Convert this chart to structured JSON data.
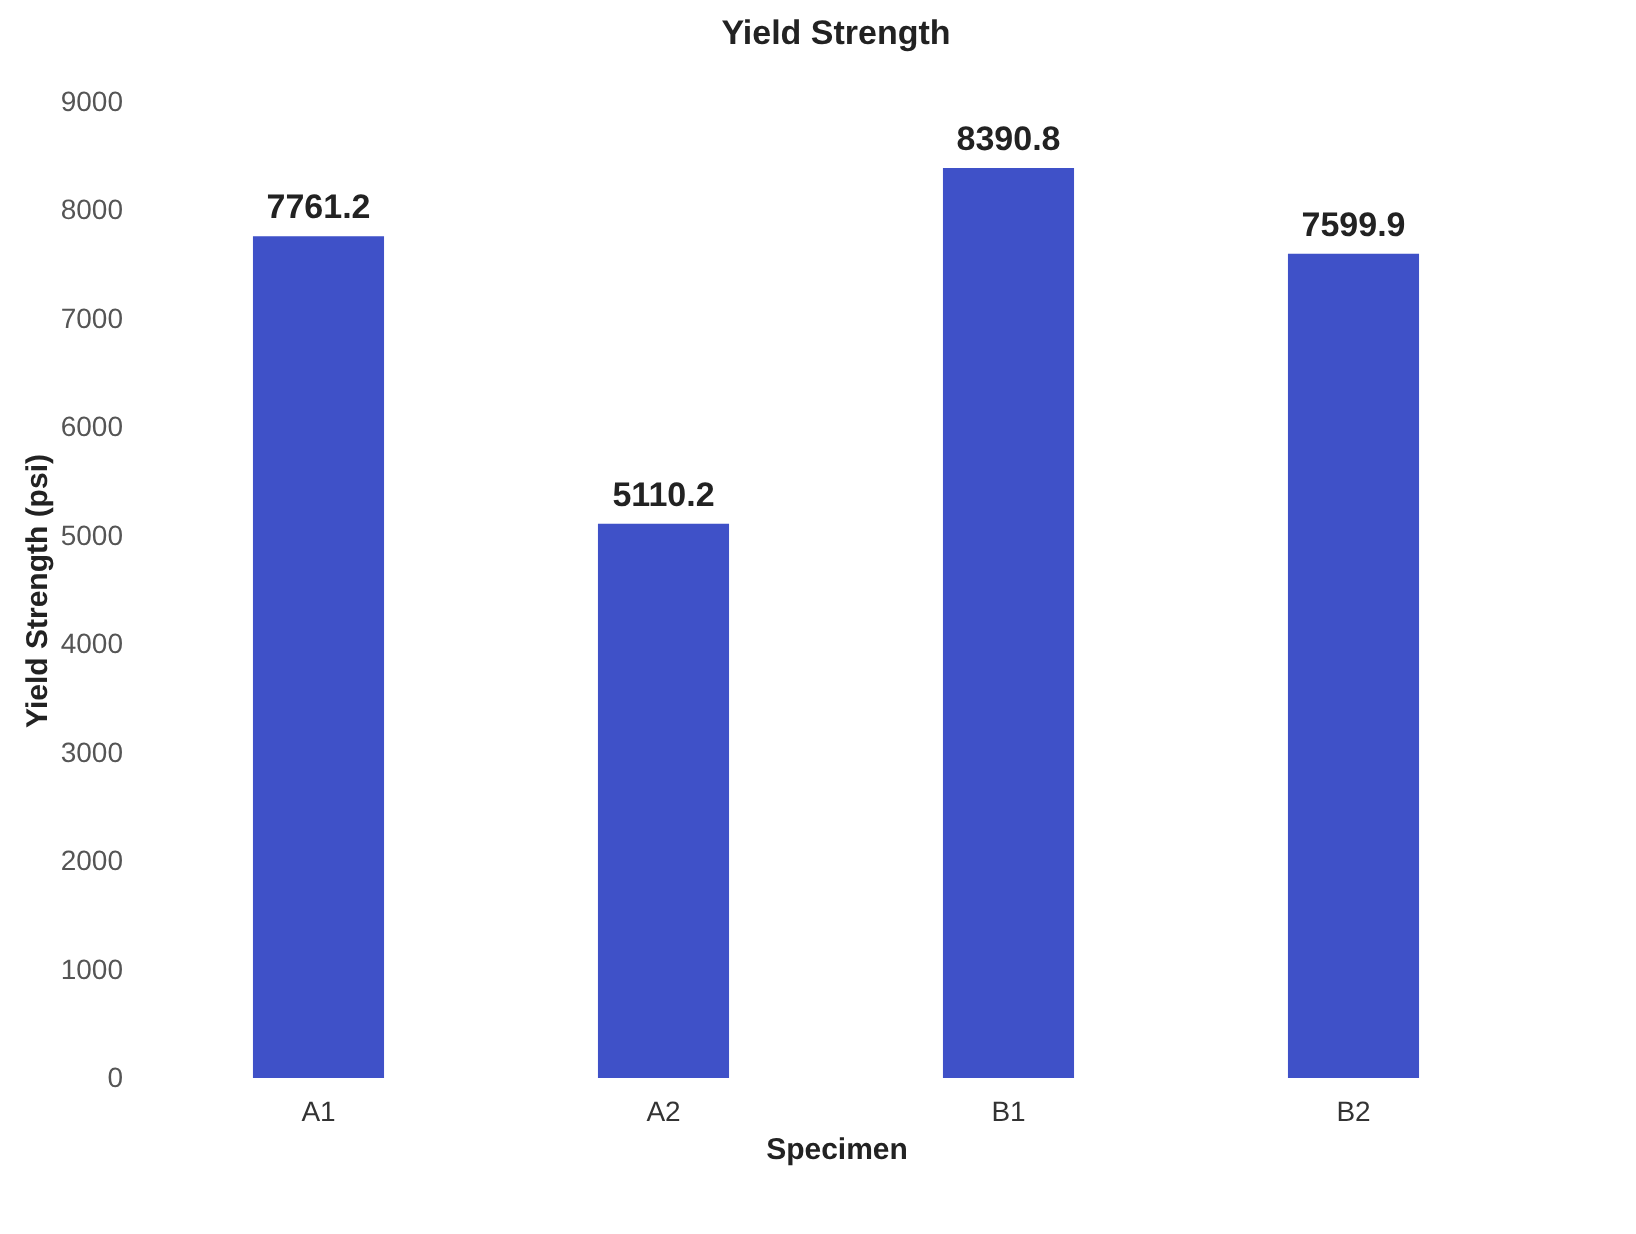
{
  "chart_data": {
    "type": "bar",
    "title": "Yield Strength",
    "xlabel": "Specimen",
    "ylabel": "Yield Strength (psi)",
    "categories": [
      "A1",
      "A2",
      "B1",
      "B2"
    ],
    "values": [
      7761.2,
      5110.2,
      8390.8,
      7599.9
    ],
    "color": "#3f51c8",
    "ylim": [
      0,
      9000
    ],
    "yticks": [
      0,
      1000,
      2000,
      3000,
      4000,
      5000,
      6000,
      7000,
      8000,
      9000
    ],
    "grid": false,
    "data_labels": true
  }
}
